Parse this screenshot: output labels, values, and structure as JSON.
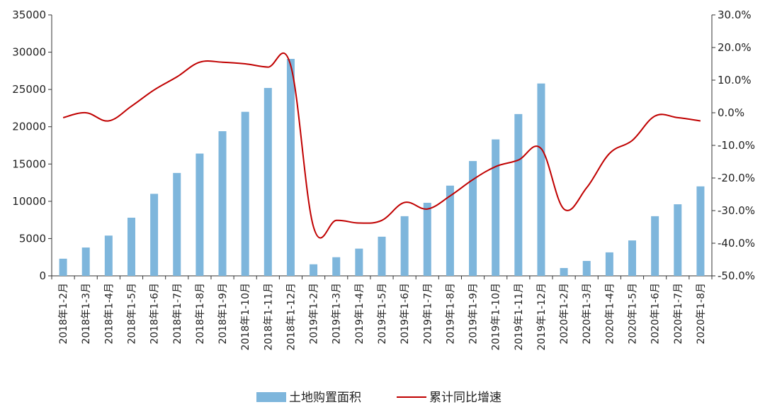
{
  "chart_data": {
    "type": "bar",
    "categories": [
      "2018年1-2月",
      "2018年1-3月",
      "2018年1-4月",
      "2018年1-5月",
      "2018年1-6月",
      "2018年1-7月",
      "2018年1-8月",
      "2018年1-9月",
      "2018年1-10月",
      "2018年1-11月",
      "2018年1-12月",
      "2019年1-2月",
      "2019年1-3月",
      "2019年1-4月",
      "2019年1-5月",
      "2019年1-6月",
      "2019年1-7月",
      "2019年1-8月",
      "2019年1-9月",
      "2019年1-10月",
      "2019年1-11月",
      "2019年1-12月",
      "2020年1-2月",
      "2020年1-3月",
      "2020年1-4月",
      "2020年1-5月",
      "2020年1-6月",
      "2020年1-7月",
      "2020年1-8月"
    ],
    "series": [
      {
        "name": "土地购置面积",
        "type": "bar",
        "axis": "left",
        "color": "#7EB6DC",
        "values": [
          2300,
          3800,
          5400,
          7800,
          11000,
          13800,
          16400,
          19400,
          22000,
          25200,
          29100,
          1550,
          2500,
          3650,
          5250,
          8000,
          9800,
          12100,
          15400,
          18300,
          21700,
          25800,
          1050,
          2000,
          3150,
          4750,
          8000,
          9600,
          12000
        ]
      },
      {
        "name": "累计同比增速",
        "type": "line",
        "axis": "right",
        "color": "#C00000",
        "values": [
          -1.5,
          0.0,
          -2.5,
          2.0,
          7.0,
          11.0,
          15.5,
          15.5,
          15.0,
          14.0,
          14.5,
          -35.0,
          -33.0,
          -33.8,
          -33.0,
          -27.5,
          -29.5,
          -25.5,
          -20.5,
          -16.5,
          -14.5,
          -11.0,
          -29.5,
          -23.0,
          -12.5,
          -8.5,
          -1.0,
          -1.5,
          -2.5
        ]
      }
    ],
    "yleft": {
      "lim": [
        0,
        35000
      ],
      "ticks": [
        "0",
        "5000",
        "10000",
        "15000",
        "20000",
        "25000",
        "30000",
        "35000"
      ]
    },
    "yright": {
      "lim": [
        -50,
        30
      ],
      "ticks": [
        "-50.0%",
        "-40.0%",
        "-30.0%",
        "-20.0%",
        "-10.0%",
        "0.0%",
        "10.0%",
        "20.0%",
        "30.0%"
      ]
    },
    "grid": false,
    "legend": "bottom"
  }
}
